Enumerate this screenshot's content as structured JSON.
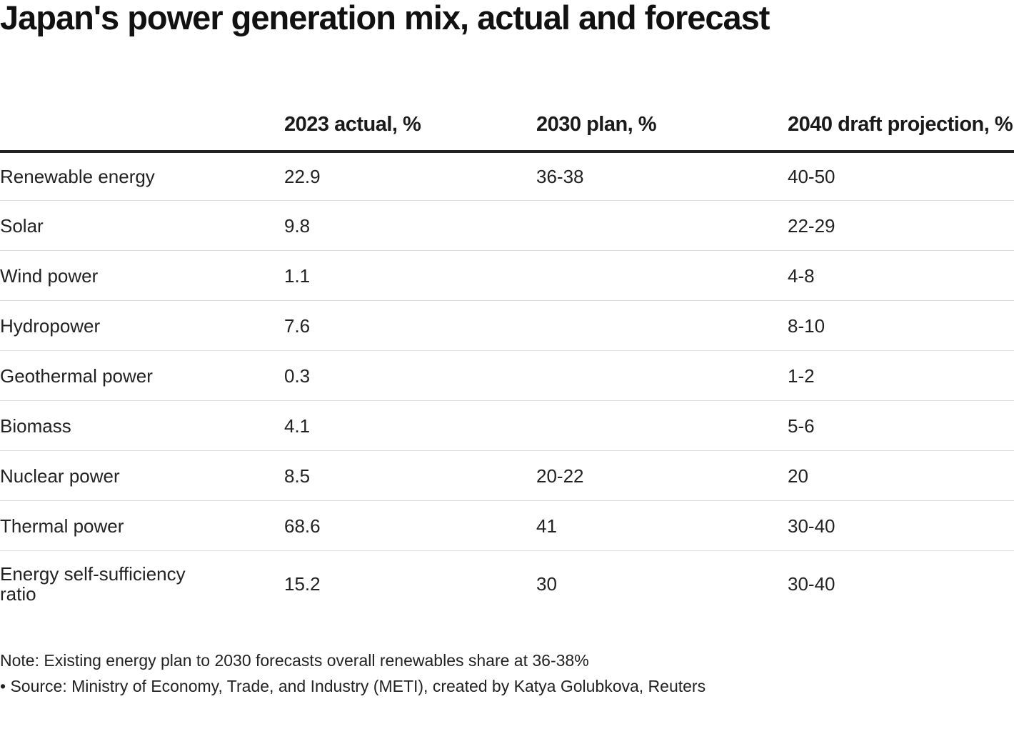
{
  "title": "Japan's power generation mix, actual and forecast",
  "chart_data": {
    "type": "table",
    "title": "Japan's power generation mix, actual and forecast",
    "columns": [
      "",
      "2023 actual, %",
      "2030 plan, %",
      "2040 draft projection, %"
    ],
    "rows": [
      {
        "label": "Renewable energy",
        "actual_2023": "22.9",
        "plan_2030": "36-38",
        "draft_2040": "40-50"
      },
      {
        "label": "Solar",
        "actual_2023": "9.8",
        "plan_2030": "",
        "draft_2040": "22-29"
      },
      {
        "label": "Wind power",
        "actual_2023": "1.1",
        "plan_2030": "",
        "draft_2040": "4-8"
      },
      {
        "label": "Hydropower",
        "actual_2023": "7.6",
        "plan_2030": "",
        "draft_2040": "8-10"
      },
      {
        "label": "Geothermal power",
        "actual_2023": "0.3",
        "plan_2030": "",
        "draft_2040": "1-2"
      },
      {
        "label": "Biomass",
        "actual_2023": "4.1",
        "plan_2030": "",
        "draft_2040": "5-6"
      },
      {
        "label": "Nuclear power",
        "actual_2023": "8.5",
        "plan_2030": "20-22",
        "draft_2040": "20"
      },
      {
        "label": "Thermal power",
        "actual_2023": "68.6",
        "plan_2030": "41",
        "draft_2040": "30-40"
      },
      {
        "label": "Energy self-sufficiency ratio",
        "actual_2023": "15.2",
        "plan_2030": "30",
        "draft_2040": "30-40"
      }
    ]
  },
  "note": "Note: Existing energy plan to 2030 forecasts overall renewables share at 36-38%",
  "source": "• Source: Ministry of Economy, Trade, and Industry (METI), created by Katya Golubkova, Reuters",
  "colors": {
    "text": "#222222",
    "header_rule": "#222222",
    "row_divider": "#dddddd",
    "background": "#ffffff"
  }
}
